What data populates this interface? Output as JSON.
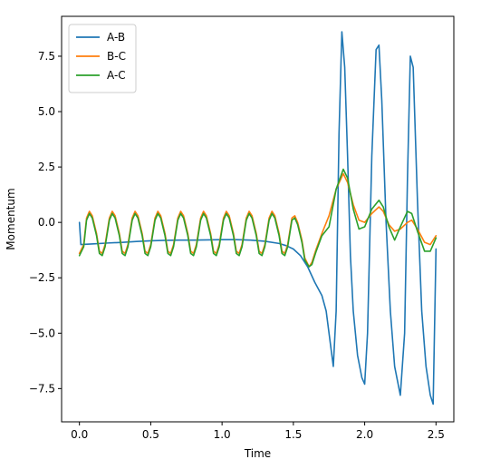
{
  "chart_data": {
    "type": "line",
    "title": "",
    "xlabel": "Time",
    "ylabel": "Momentum",
    "xlim": [
      -0.125,
      2.625
    ],
    "ylim": [
      -9.0,
      9.3
    ],
    "xticks": [
      0.0,
      0.5,
      1.0,
      1.5,
      2.0,
      2.5
    ],
    "xtick_labels": [
      "0.0",
      "0.5",
      "1.0",
      "1.5",
      "2.0",
      "2.5"
    ],
    "yticks": [
      -7.5,
      -5.0,
      -2.5,
      0.0,
      2.5,
      5.0,
      7.5
    ],
    "ytick_labels": [
      "−7.5",
      "−5.0",
      "−2.5",
      "0.0",
      "2.5",
      "5.0",
      "7.5"
    ],
    "grid": false,
    "legend_position": "top-left",
    "series": [
      {
        "name": "A-B",
        "color": "#1f77b4",
        "points": [
          [
            0.0,
            0.0
          ],
          [
            0.01,
            -1.0
          ],
          [
            0.1,
            -0.97
          ],
          [
            0.2,
            -0.93
          ],
          [
            0.3,
            -0.9
          ],
          [
            0.4,
            -0.86
          ],
          [
            0.5,
            -0.83
          ],
          [
            0.6,
            -0.81
          ],
          [
            0.7,
            -0.8
          ],
          [
            0.8,
            -0.8
          ],
          [
            0.9,
            -0.79
          ],
          [
            1.0,
            -0.78
          ],
          [
            1.1,
            -0.78
          ],
          [
            1.2,
            -0.8
          ],
          [
            1.3,
            -0.85
          ],
          [
            1.4,
            -0.95
          ],
          [
            1.45,
            -1.05
          ],
          [
            1.5,
            -1.2
          ],
          [
            1.55,
            -1.5
          ],
          [
            1.6,
            -2.0
          ],
          [
            1.65,
            -2.7
          ],
          [
            1.7,
            -3.3
          ],
          [
            1.73,
            -4.0
          ],
          [
            1.76,
            -5.5
          ],
          [
            1.78,
            -6.5
          ],
          [
            1.8,
            -4.0
          ],
          [
            1.82,
            4.0
          ],
          [
            1.84,
            8.6
          ],
          [
            1.86,
            7.0
          ],
          [
            1.88,
            3.0
          ],
          [
            1.9,
            -1.5
          ],
          [
            1.92,
            -4.0
          ],
          [
            1.95,
            -6.0
          ],
          [
            1.98,
            -7.0
          ],
          [
            2.0,
            -7.3
          ],
          [
            2.02,
            -5.0
          ],
          [
            2.05,
            3.0
          ],
          [
            2.08,
            7.8
          ],
          [
            2.1,
            8.0
          ],
          [
            2.12,
            5.5
          ],
          [
            2.15,
            0.0
          ],
          [
            2.18,
            -4.0
          ],
          [
            2.21,
            -6.5
          ],
          [
            2.25,
            -7.8
          ],
          [
            2.28,
            -5.0
          ],
          [
            2.3,
            2.0
          ],
          [
            2.32,
            7.5
          ],
          [
            2.34,
            7.0
          ],
          [
            2.37,
            1.0
          ],
          [
            2.4,
            -4.0
          ],
          [
            2.43,
            -6.5
          ],
          [
            2.46,
            -7.8
          ],
          [
            2.48,
            -8.2
          ],
          [
            2.5,
            -1.2
          ]
        ]
      },
      {
        "name": "B-C",
        "color": "#ff7f0e",
        "points": [
          [
            0.0,
            -1.4
          ],
          [
            0.03,
            -1.0
          ],
          [
            0.05,
            0.2
          ],
          [
            0.07,
            0.5
          ],
          [
            0.09,
            0.3
          ],
          [
            0.12,
            -0.5
          ],
          [
            0.14,
            -1.3
          ],
          [
            0.16,
            -1.4
          ],
          [
            0.18,
            -1.0
          ],
          [
            0.21,
            0.2
          ],
          [
            0.23,
            0.5
          ],
          [
            0.25,
            0.3
          ],
          [
            0.28,
            -0.5
          ],
          [
            0.3,
            -1.3
          ],
          [
            0.32,
            -1.4
          ],
          [
            0.34,
            -1.0
          ],
          [
            0.37,
            0.2
          ],
          [
            0.39,
            0.5
          ],
          [
            0.41,
            0.3
          ],
          [
            0.44,
            -0.5
          ],
          [
            0.46,
            -1.3
          ],
          [
            0.48,
            -1.4
          ],
          [
            0.5,
            -1.0
          ],
          [
            0.53,
            0.2
          ],
          [
            0.55,
            0.5
          ],
          [
            0.57,
            0.3
          ],
          [
            0.6,
            -0.5
          ],
          [
            0.62,
            -1.3
          ],
          [
            0.64,
            -1.4
          ],
          [
            0.66,
            -1.0
          ],
          [
            0.69,
            0.2
          ],
          [
            0.71,
            0.5
          ],
          [
            0.73,
            0.3
          ],
          [
            0.76,
            -0.5
          ],
          [
            0.78,
            -1.3
          ],
          [
            0.8,
            -1.4
          ],
          [
            0.82,
            -1.0
          ],
          [
            0.85,
            0.2
          ],
          [
            0.87,
            0.5
          ],
          [
            0.89,
            0.3
          ],
          [
            0.92,
            -0.5
          ],
          [
            0.94,
            -1.3
          ],
          [
            0.96,
            -1.4
          ],
          [
            0.98,
            -1.0
          ],
          [
            1.01,
            0.2
          ],
          [
            1.03,
            0.5
          ],
          [
            1.05,
            0.3
          ],
          [
            1.08,
            -0.5
          ],
          [
            1.1,
            -1.3
          ],
          [
            1.12,
            -1.4
          ],
          [
            1.14,
            -1.0
          ],
          [
            1.17,
            0.2
          ],
          [
            1.19,
            0.5
          ],
          [
            1.21,
            0.3
          ],
          [
            1.24,
            -0.5
          ],
          [
            1.26,
            -1.3
          ],
          [
            1.28,
            -1.4
          ],
          [
            1.3,
            -1.0
          ],
          [
            1.33,
            0.2
          ],
          [
            1.35,
            0.5
          ],
          [
            1.37,
            0.3
          ],
          [
            1.4,
            -0.5
          ],
          [
            1.42,
            -1.3
          ],
          [
            1.44,
            -1.4
          ],
          [
            1.46,
            -1.0
          ],
          [
            1.49,
            0.2
          ],
          [
            1.51,
            0.3
          ],
          [
            1.53,
            0.0
          ],
          [
            1.56,
            -0.8
          ],
          [
            1.58,
            -1.6
          ],
          [
            1.61,
            -2.0
          ],
          [
            1.63,
            -1.8
          ],
          [
            1.66,
            -1.2
          ],
          [
            1.7,
            -0.5
          ],
          [
            1.75,
            0.3
          ],
          [
            1.8,
            1.5
          ],
          [
            1.85,
            2.2
          ],
          [
            1.88,
            1.8
          ],
          [
            1.92,
            0.8
          ],
          [
            1.96,
            0.1
          ],
          [
            2.0,
            0.0
          ],
          [
            2.05,
            0.4
          ],
          [
            2.1,
            0.7
          ],
          [
            2.13,
            0.5
          ],
          [
            2.17,
            -0.1
          ],
          [
            2.21,
            -0.4
          ],
          [
            2.25,
            -0.3
          ],
          [
            2.3,
            0.0
          ],
          [
            2.33,
            0.1
          ],
          [
            2.37,
            -0.3
          ],
          [
            2.42,
            -0.9
          ],
          [
            2.46,
            -1.0
          ],
          [
            2.5,
            -0.6
          ]
        ]
      },
      {
        "name": "A-C",
        "color": "#2ca02c",
        "points": [
          [
            0.0,
            -1.5
          ],
          [
            0.03,
            -1.1
          ],
          [
            0.05,
            0.1
          ],
          [
            0.07,
            0.4
          ],
          [
            0.09,
            0.2
          ],
          [
            0.12,
            -0.6
          ],
          [
            0.14,
            -1.4
          ],
          [
            0.16,
            -1.5
          ],
          [
            0.18,
            -1.1
          ],
          [
            0.21,
            0.1
          ],
          [
            0.23,
            0.4
          ],
          [
            0.25,
            0.2
          ],
          [
            0.28,
            -0.6
          ],
          [
            0.3,
            -1.4
          ],
          [
            0.32,
            -1.5
          ],
          [
            0.34,
            -1.1
          ],
          [
            0.37,
            0.1
          ],
          [
            0.39,
            0.4
          ],
          [
            0.41,
            0.2
          ],
          [
            0.44,
            -0.6
          ],
          [
            0.46,
            -1.4
          ],
          [
            0.48,
            -1.5
          ],
          [
            0.5,
            -1.1
          ],
          [
            0.53,
            0.1
          ],
          [
            0.55,
            0.4
          ],
          [
            0.57,
            0.2
          ],
          [
            0.6,
            -0.6
          ],
          [
            0.62,
            -1.4
          ],
          [
            0.64,
            -1.5
          ],
          [
            0.66,
            -1.1
          ],
          [
            0.69,
            0.1
          ],
          [
            0.71,
            0.4
          ],
          [
            0.73,
            0.2
          ],
          [
            0.76,
            -0.6
          ],
          [
            0.78,
            -1.4
          ],
          [
            0.8,
            -1.5
          ],
          [
            0.82,
            -1.1
          ],
          [
            0.85,
            0.1
          ],
          [
            0.87,
            0.4
          ],
          [
            0.89,
            0.2
          ],
          [
            0.92,
            -0.6
          ],
          [
            0.94,
            -1.4
          ],
          [
            0.96,
            -1.5
          ],
          [
            0.98,
            -1.1
          ],
          [
            1.01,
            0.1
          ],
          [
            1.03,
            0.4
          ],
          [
            1.05,
            0.2
          ],
          [
            1.08,
            -0.6
          ],
          [
            1.1,
            -1.4
          ],
          [
            1.12,
            -1.5
          ],
          [
            1.14,
            -1.1
          ],
          [
            1.17,
            0.1
          ],
          [
            1.19,
            0.4
          ],
          [
            1.21,
            0.2
          ],
          [
            1.24,
            -0.6
          ],
          [
            1.26,
            -1.4
          ],
          [
            1.28,
            -1.5
          ],
          [
            1.3,
            -1.1
          ],
          [
            1.33,
            0.1
          ],
          [
            1.35,
            0.4
          ],
          [
            1.37,
            0.2
          ],
          [
            1.4,
            -0.6
          ],
          [
            1.42,
            -1.4
          ],
          [
            1.44,
            -1.5
          ],
          [
            1.46,
            -1.1
          ],
          [
            1.49,
            0.1
          ],
          [
            1.51,
            0.2
          ],
          [
            1.53,
            -0.1
          ],
          [
            1.56,
            -0.9
          ],
          [
            1.58,
            -1.7
          ],
          [
            1.61,
            -2.0
          ],
          [
            1.63,
            -1.9
          ],
          [
            1.66,
            -1.3
          ],
          [
            1.7,
            -0.6
          ],
          [
            1.75,
            -0.2
          ],
          [
            1.8,
            1.5
          ],
          [
            1.85,
            2.4
          ],
          [
            1.88,
            2.0
          ],
          [
            1.92,
            0.6
          ],
          [
            1.96,
            -0.3
          ],
          [
            2.0,
            -0.2
          ],
          [
            2.05,
            0.6
          ],
          [
            2.1,
            1.0
          ],
          [
            2.13,
            0.7
          ],
          [
            2.17,
            -0.2
          ],
          [
            2.21,
            -0.8
          ],
          [
            2.25,
            -0.2
          ],
          [
            2.3,
            0.5
          ],
          [
            2.33,
            0.4
          ],
          [
            2.37,
            -0.4
          ],
          [
            2.42,
            -1.3
          ],
          [
            2.46,
            -1.3
          ],
          [
            2.5,
            -0.7
          ]
        ]
      }
    ]
  }
}
